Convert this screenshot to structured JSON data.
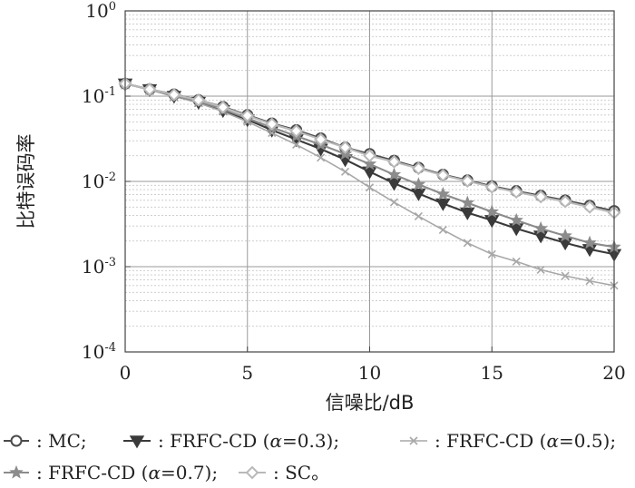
{
  "chart_data": {
    "type": "line",
    "title": "",
    "xlabel": "信噪比/dB",
    "ylabel": "比特误码率",
    "xlim": [
      0,
      20
    ],
    "ylim": [
      0.0001,
      1
    ],
    "y_scale": "log",
    "grid": true,
    "x_ticks": [
      0,
      5,
      10,
      15,
      20
    ],
    "x_tick_labels": [
      "0",
      "5",
      "10",
      "15",
      "20"
    ],
    "y_ticks": [
      {
        "base": "10",
        "exp": "0",
        "value": 1
      },
      {
        "base": "10",
        "exp": "-1",
        "value": 0.1
      },
      {
        "base": "10",
        "exp": "-2",
        "value": 0.01
      },
      {
        "base": "10",
        "exp": "-3",
        "value": 0.001
      },
      {
        "base": "10",
        "exp": "-4",
        "value": 0.0001
      }
    ],
    "legend_placement": "bottom",
    "x": [
      0,
      1,
      2,
      3,
      4,
      5,
      6,
      7,
      8,
      9,
      10,
      11,
      12,
      13,
      14,
      15,
      16,
      17,
      18,
      19,
      20
    ],
    "series": [
      {
        "name": "MC",
        "label_prefix": ": MC;",
        "color": "#4a4a4a",
        "marker": "circle",
        "values": [
          0.14,
          0.12,
          0.105,
          0.09,
          0.075,
          0.06,
          0.048,
          0.04,
          0.032,
          0.025,
          0.021,
          0.0175,
          0.0145,
          0.012,
          0.0103,
          0.0088,
          0.0077,
          0.0068,
          0.006,
          0.0052,
          0.0045
        ]
      },
      {
        "name": "FRFC-CD (α=0.3)",
        "label_prefix": ": FRFC-CD (",
        "label_alpha": "α",
        "label_suffix": "=0.3);",
        "color": "#3a3a3a",
        "marker": "triangle-down",
        "values": [
          0.14,
          0.12,
          0.1,
          0.085,
          0.068,
          0.053,
          0.04,
          0.031,
          0.024,
          0.018,
          0.013,
          0.0095,
          0.0072,
          0.0055,
          0.0043,
          0.0035,
          0.0028,
          0.0023,
          0.0019,
          0.0016,
          0.0014
        ]
      },
      {
        "name": "FRFC-CD (α=0.5)",
        "label_prefix": ": FRFC-CD (",
        "label_alpha": "α",
        "label_suffix": "=0.5);",
        "color": "#a8a8a8",
        "marker": "x",
        "values": [
          0.14,
          0.12,
          0.1,
          0.083,
          0.066,
          0.05,
          0.037,
          0.027,
          0.019,
          0.013,
          0.0085,
          0.0057,
          0.0039,
          0.0027,
          0.0019,
          0.0014,
          0.00115,
          0.00092,
          0.00078,
          0.00068,
          0.0006
        ]
      },
      {
        "name": "FRFC-CD (α=0.7)",
        "label_prefix": ": FRFC-CD (",
        "label_alpha": "α",
        "label_suffix": "=0.7);",
        "color": "#8c8c8c",
        "marker": "star",
        "values": [
          0.14,
          0.12,
          0.101,
          0.087,
          0.07,
          0.055,
          0.043,
          0.034,
          0.027,
          0.021,
          0.016,
          0.012,
          0.0092,
          0.0071,
          0.0056,
          0.0044,
          0.0035,
          0.0028,
          0.0023,
          0.0019,
          0.0017
        ]
      },
      {
        "name": "SC",
        "label_prefix": ": SC。",
        "color": "#b9b9b9",
        "marker": "diamond",
        "values": [
          0.14,
          0.12,
          0.104,
          0.09,
          0.074,
          0.059,
          0.047,
          0.039,
          0.031,
          0.025,
          0.02,
          0.017,
          0.0142,
          0.0118,
          0.0101,
          0.0086,
          0.0075,
          0.0066,
          0.0058,
          0.005,
          0.0043
        ]
      }
    ]
  }
}
